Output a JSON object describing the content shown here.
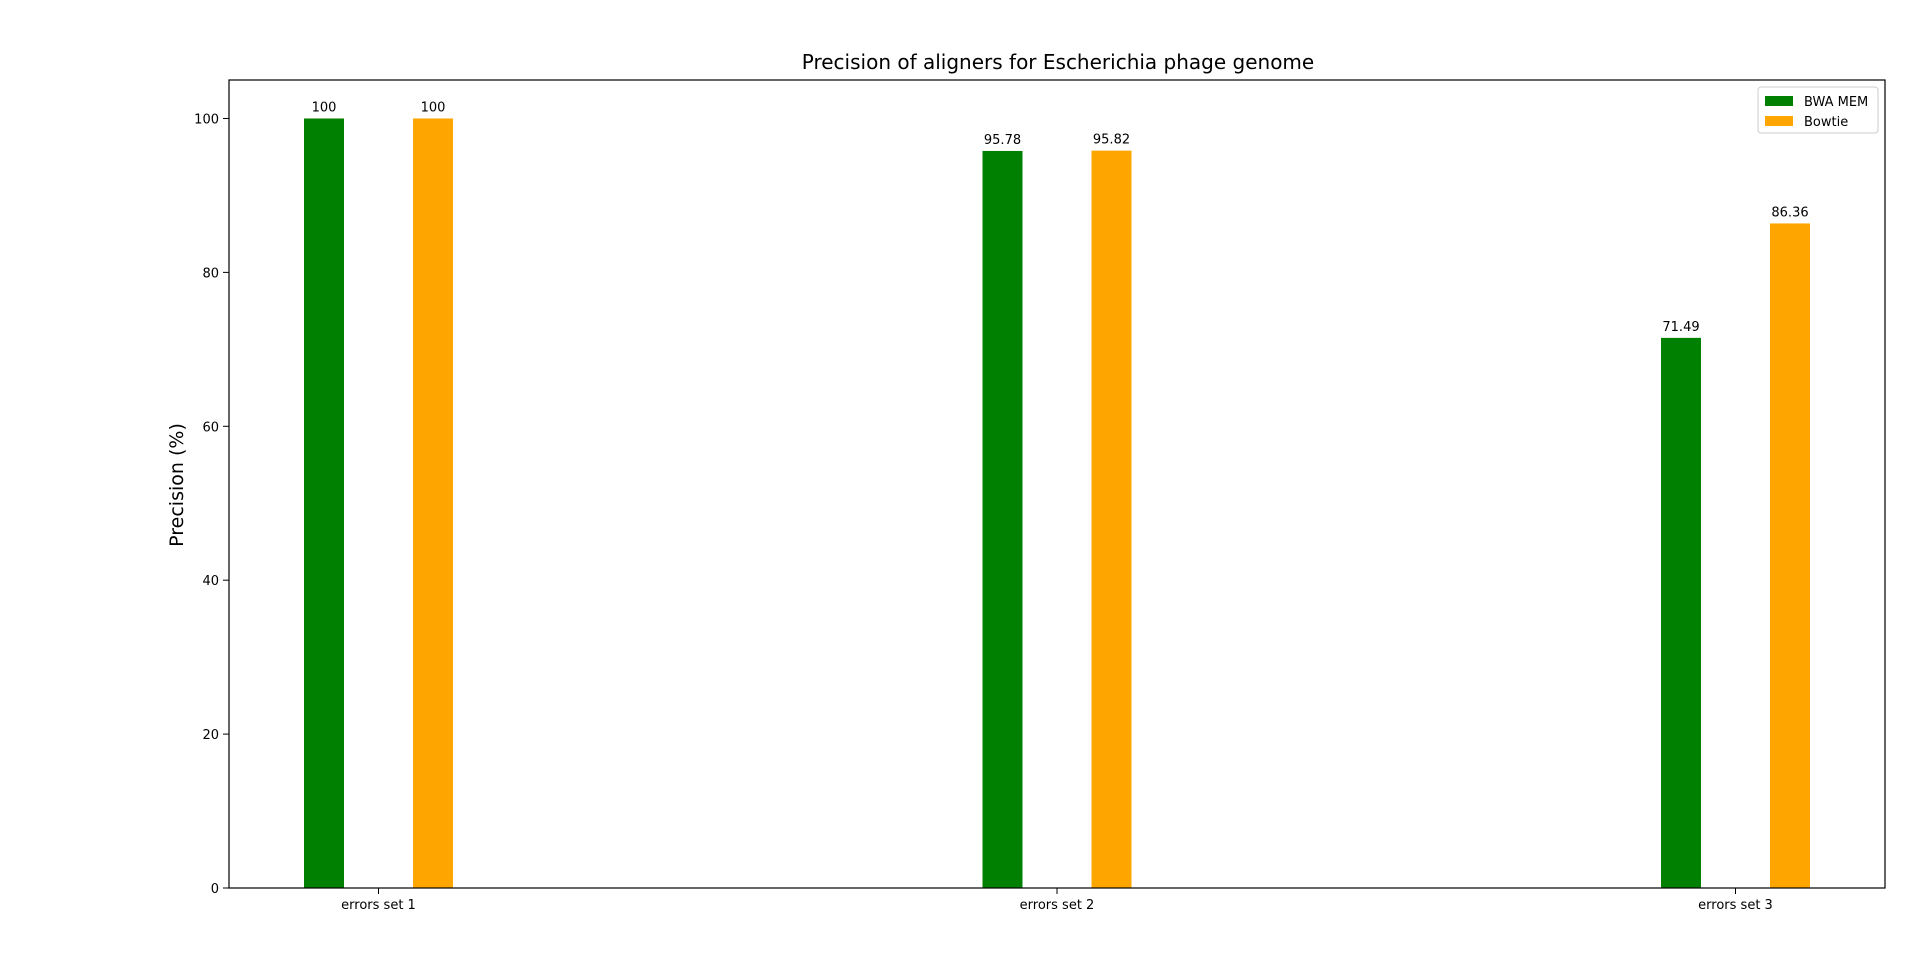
{
  "chart_data": {
    "type": "bar",
    "title": "Precision of aligners for Escherichia phage genome",
    "xlabel": "",
    "ylabel": "Precision (%)",
    "categories": [
      "errors set 1",
      "errors set 2",
      "errors set 3"
    ],
    "series": [
      {
        "name": "BWA MEM",
        "color": "#008000",
        "values": [
          100,
          95.78,
          71.49
        ],
        "labels": [
          "100",
          "95.78",
          "71.49"
        ]
      },
      {
        "name": "Bowtie",
        "color": "#FFA500",
        "values": [
          100,
          95.82,
          86.36
        ],
        "labels": [
          "100",
          "95.82",
          "86.36"
        ]
      }
    ],
    "ylim": [
      0,
      105
    ],
    "yticks": [
      0,
      20,
      40,
      60,
      80,
      100
    ],
    "grid": false,
    "legend_position": "top-right"
  }
}
